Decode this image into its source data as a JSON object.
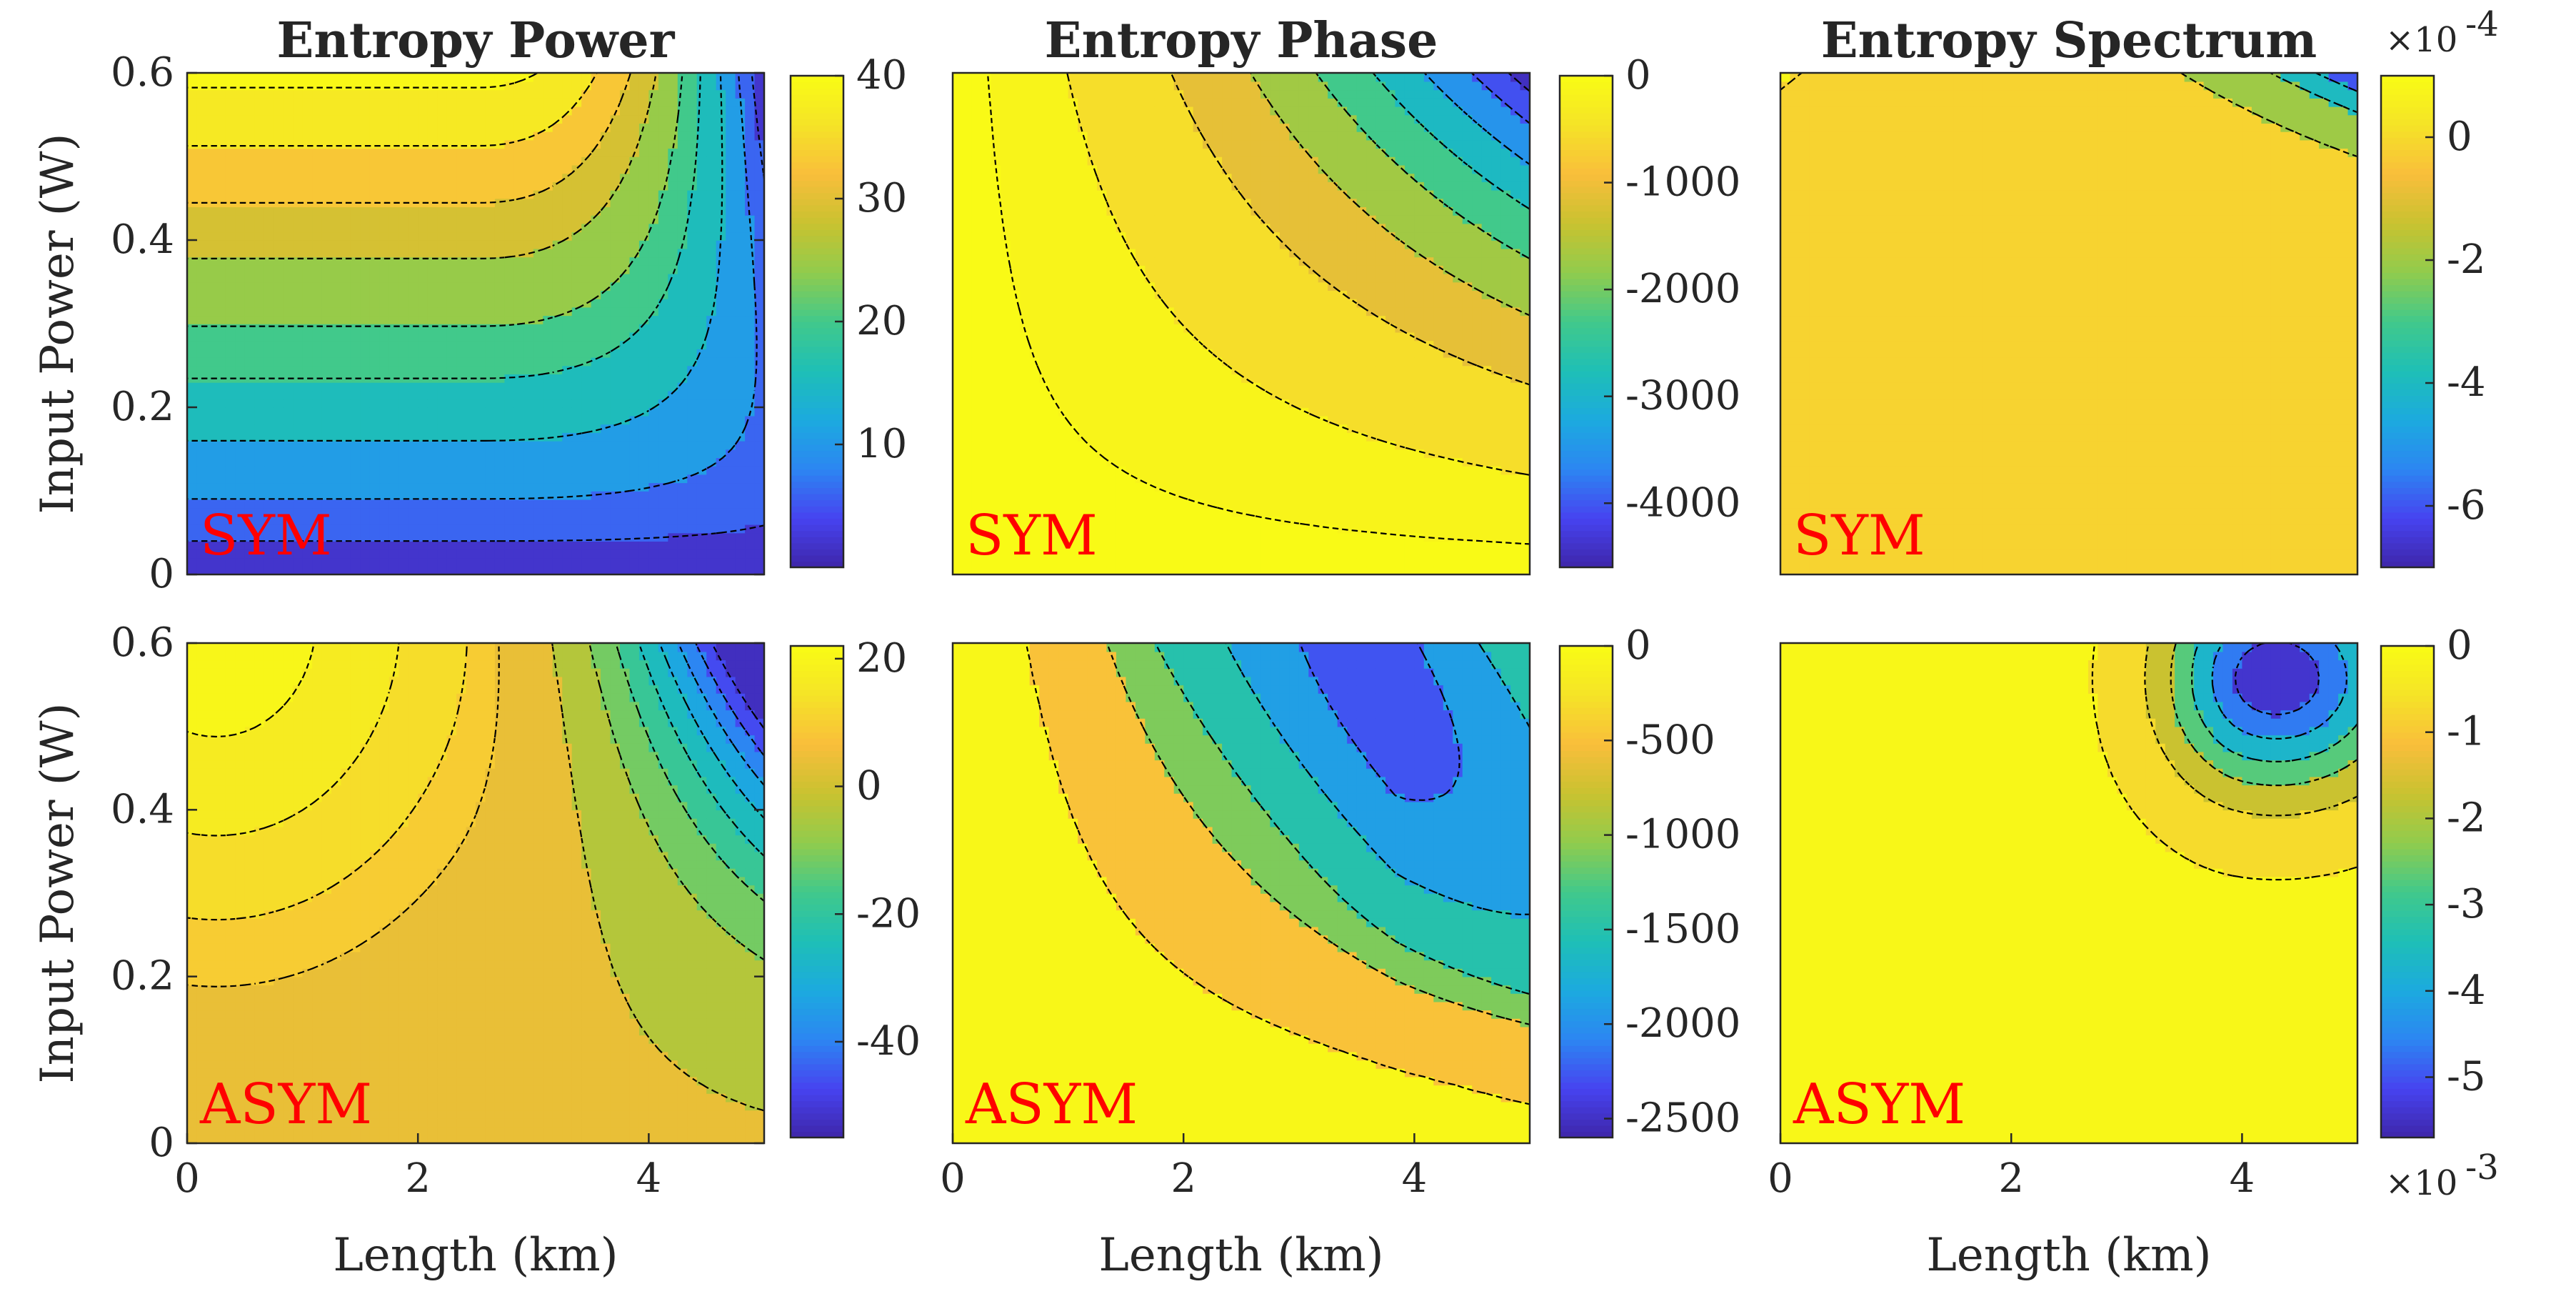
{
  "colors": {
    "colormap": [
      "#3e26a8",
      "#4743f0",
      "#2c86f2",
      "#1caadf",
      "#1ebfb6",
      "#41c98b",
      "#90cc4d",
      "#c9c230",
      "#f9be3b",
      "#f5e327",
      "#f9fb15"
    ],
    "tag": "#ff0000",
    "axis": "#262626",
    "contour_line": "#000000"
  },
  "chart_data": [
    {
      "type": "heatmap",
      "title": "Entropy Power",
      "tag": "SYM",
      "xlabel": "",
      "ylabel": "Input Power (W)",
      "xlim": [
        0,
        5
      ],
      "ylim": [
        0,
        0.6
      ],
      "x_ticks": [],
      "y_ticks": [
        "0",
        "0.2",
        "0.4",
        "0.6"
      ],
      "colorbar": {
        "range": [
          0,
          40
        ],
        "ticks": [
          "10",
          "20",
          "30",
          "40"
        ],
        "exponent": ""
      },
      "contour_levels": [
        4,
        8,
        13,
        18,
        22,
        27,
        31,
        35,
        39
      ]
    },
    {
      "type": "heatmap",
      "title": "Entropy Phase",
      "tag": "SYM",
      "xlabel": "",
      "ylabel": "",
      "xlim": [
        0,
        5
      ],
      "ylim": [
        0,
        0.6
      ],
      "x_ticks": [],
      "y_ticks": [],
      "colorbar": {
        "range": [
          -4600,
          0
        ],
        "ticks": [
          "0",
          "-1000",
          "-2000",
          "-3000",
          "-4000"
        ],
        "exponent": ""
      },
      "contour_levels": [
        -30,
        -250,
        -800,
        -1400,
        -2000,
        -2600,
        -3200,
        -3800,
        -4300
      ]
    },
    {
      "type": "heatmap",
      "title": "Entropy Spectrum",
      "tag": "SYM",
      "xlabel": "",
      "ylabel": "",
      "xlim": [
        0,
        5
      ],
      "ylim": [
        0,
        0.6
      ],
      "x_ticks": [],
      "y_ticks": [],
      "colorbar": {
        "range": [
          -7,
          1
        ],
        "ticks": [
          "0",
          "-2",
          "-4",
          "-6"
        ],
        "exponent": "×10",
        "exponent_power": "-4"
      },
      "contour_levels": [
        0.7,
        -1,
        -3,
        -5
      ]
    },
    {
      "type": "heatmap",
      "title": "",
      "tag": "ASYM",
      "xlabel": "Length (km)",
      "ylabel": "Input Power (W)",
      "xlim": [
        0,
        5
      ],
      "ylim": [
        0,
        0.6
      ],
      "x_ticks": [
        "0",
        "2",
        "4"
      ],
      "y_ticks": [
        "0",
        "0.2",
        "0.4",
        "0.6"
      ],
      "colorbar": {
        "range": [
          -55,
          22
        ],
        "ticks": [
          "20",
          "0",
          "-20",
          "-40"
        ],
        "exponent": ""
      },
      "contour_levels": [
        19,
        15,
        11,
        8,
        0,
        -8,
        -15,
        -22,
        -29,
        -36,
        -43,
        -50
      ]
    },
    {
      "type": "heatmap",
      "title": "",
      "tag": "ASYM",
      "xlabel": "Length (km)",
      "ylabel": "",
      "xlim": [
        0,
        5
      ],
      "ylim": [
        0,
        0.6
      ],
      "x_ticks": [
        "0",
        "2",
        "4"
      ],
      "y_ticks": [],
      "colorbar": {
        "range": [
          -2600,
          0
        ],
        "ticks": [
          "0",
          "-500",
          "-1000",
          "-1500",
          "-2000",
          "-2500"
        ],
        "exponent": ""
      },
      "contour_levels": [
        -80,
        -900,
        -1300,
        -1700,
        -2100,
        -2450
      ]
    },
    {
      "type": "heatmap",
      "title": "",
      "tag": "ASYM",
      "xlabel": "Length (km)",
      "ylabel": "",
      "xlim": [
        0,
        5
      ],
      "ylim": [
        0,
        0.6
      ],
      "x_ticks": [
        "0",
        "2",
        "4"
      ],
      "y_ticks": [],
      "colorbar": {
        "range": [
          -5.7,
          0
        ],
        "ticks": [
          "0",
          "-1",
          "-2",
          "-3",
          "-4",
          "-5"
        ],
        "exponent": "×10",
        "exponent_power": "-3"
      },
      "contour_levels": [
        -0.2,
        -1.2,
        -2.2,
        -3.2,
        -4.2,
        -5.1
      ]
    }
  ]
}
